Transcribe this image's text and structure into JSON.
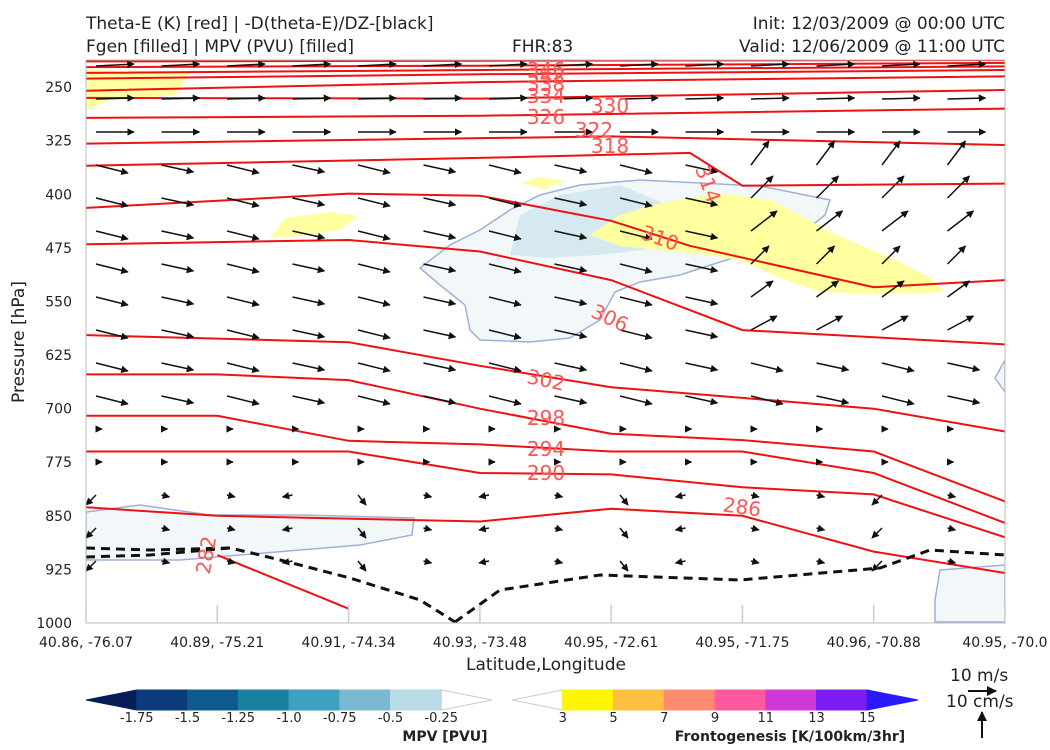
{
  "header": {
    "title_line1": "Theta-E (K) [red] | -D(theta-E)/DZ-[black]",
    "title_line2": "Fgen [filled] | MPV (PVU) [filled]",
    "fhr": "FHR:83",
    "init": "Init: 12/03/2009 @ 00:00 UTC",
    "valid": "Valid: 12/06/2009 @ 11:00 UTC"
  },
  "chart_data": {
    "type": "cross-section",
    "xlabel": "Latitude,Longitude",
    "ylabel": "Pressure [hPa]",
    "x_ticks": [
      "40.86, -76.07",
      "40.89, -75.21",
      "40.91, -74.34",
      "40.93, -73.48",
      "40.95, -72.61",
      "40.95, -71.75",
      "40.96, -70.88",
      "40.95, -70.0"
    ],
    "y_ticks": [
      250,
      325,
      400,
      475,
      550,
      625,
      700,
      775,
      850,
      925,
      1000
    ],
    "ylim": [
      1000,
      212
    ],
    "y_inverted": true,
    "theta_e_contours": [
      {
        "level": 346,
        "points": [
          [
            0,
            214
          ],
          [
            3,
            213
          ],
          [
            7,
            212
          ]
        ]
      },
      {
        "level": 342,
        "points": [
          [
            0,
            222
          ],
          [
            3,
            220
          ],
          [
            7,
            216
          ]
        ]
      },
      {
        "level": 338,
        "points": [
          [
            0,
            230
          ],
          [
            3,
            226
          ],
          [
            7,
            221
          ]
        ]
      },
      {
        "level": 334,
        "points": [
          [
            0,
            238
          ],
          [
            3,
            232
          ],
          [
            7,
            226
          ]
        ]
      },
      {
        "level": 330,
        "points": [
          [
            0,
            255
          ],
          [
            3,
            243
          ],
          [
            7,
            235
          ]
        ]
      },
      {
        "level": 326,
        "points": [
          [
            0,
            265
          ],
          [
            3,
            266
          ],
          [
            7,
            254
          ]
        ]
      },
      {
        "level": 322,
        "points": [
          [
            0,
            293
          ],
          [
            3,
            290
          ],
          [
            7,
            280
          ]
        ]
      },
      {
        "level": 318,
        "points": [
          [
            0,
            329
          ],
          [
            4,
            319
          ],
          [
            7,
            331
          ]
        ]
      },
      {
        "level": 314,
        "points": [
          [
            0,
            360
          ],
          [
            3,
            349
          ],
          [
            4.6,
            342
          ],
          [
            5,
            388
          ],
          [
            7,
            385
          ],
          [
            7,
            385
          ]
        ]
      },
      {
        "level": 310,
        "points": [
          [
            0,
            419
          ],
          [
            2,
            399
          ],
          [
            3,
            402
          ],
          [
            4,
            437
          ],
          [
            4.6,
            472
          ],
          [
            6,
            530
          ],
          [
            7,
            520
          ]
        ]
      },
      {
        "level": 306,
        "points": [
          [
            0,
            470
          ],
          [
            2,
            464
          ],
          [
            3,
            480
          ],
          [
            4,
            520
          ],
          [
            5,
            590
          ],
          [
            7,
            610
          ]
        ]
      },
      {
        "level": 302,
        "points": [
          [
            0,
            597
          ],
          [
            2,
            607
          ],
          [
            3,
            640
          ],
          [
            4,
            670
          ],
          [
            5,
            685
          ],
          [
            6,
            700
          ],
          [
            7,
            732
          ]
        ]
      },
      {
        "level": 298,
        "points": [
          [
            0,
            652
          ],
          [
            1,
            652
          ],
          [
            2,
            660
          ],
          [
            3,
            700
          ],
          [
            4,
            735
          ],
          [
            5,
            744
          ],
          [
            6,
            760
          ],
          [
            7,
            830
          ]
        ]
      },
      {
        "level": 294,
        "points": [
          [
            0,
            710
          ],
          [
            1,
            710
          ],
          [
            2,
            745
          ],
          [
            3,
            750
          ],
          [
            4,
            760
          ],
          [
            5,
            760
          ],
          [
            6,
            790
          ],
          [
            7,
            860
          ]
        ]
      },
      {
        "level": 290,
        "points": [
          [
            0,
            760
          ],
          [
            2,
            760
          ],
          [
            3,
            790
          ],
          [
            4,
            792
          ],
          [
            5,
            810
          ],
          [
            6,
            820
          ],
          [
            7,
            880
          ]
        ]
      },
      {
        "level": 286,
        "points": [
          [
            0,
            838
          ],
          [
            1,
            850
          ],
          [
            3,
            858
          ],
          [
            4,
            840
          ],
          [
            5,
            850
          ],
          [
            6,
            900
          ],
          [
            7,
            930
          ]
        ]
      },
      {
        "level": 282,
        "points": [
          [
            1,
            905
          ],
          [
            2,
            980
          ]
        ]
      }
    ],
    "stability_zero_contour": {
      "level": 0,
      "points": [
        [
          0,
          885
        ],
        [
          1,
          893
        ],
        [
          2,
          920
        ],
        [
          3,
          975
        ],
        [
          4,
          950
        ],
        [
          5,
          955
        ],
        [
          6,
          935
        ],
        [
          7,
          935
        ]
      ]
    },
    "mpv_filled": [
      {
        "value": -0.25,
        "color": "#f2f8fa"
      },
      {
        "value": -0.5,
        "color": "#d6e9f0"
      }
    ],
    "fgen_filled": [
      {
        "value": 3,
        "color": "#ffffa0"
      }
    ],
    "wind_reference": {
      "speed": "10 m/s",
      "vertical": "10 cm/s"
    },
    "colorbars": [
      {
        "label": "MPV [PVU]",
        "ticks": [
          "-1.75",
          "-1.5",
          "-1.25",
          "-1.0",
          "-0.75",
          "-0.5",
          "-0.25"
        ],
        "colors": [
          "#081d58",
          "#0b3b7a",
          "#0f5a8c",
          "#17809f",
          "#3fa1c0",
          "#7ab9d1",
          "#b9dbe6",
          "#ffffff"
        ]
      },
      {
        "label": "Frontogenesis [K/100km/3hr]",
        "ticks": [
          "3",
          "5",
          "7",
          "9",
          "11",
          "13",
          "15"
        ],
        "colors": [
          "#ffffff",
          "#fff500",
          "#ffbf40",
          "#ff8a70",
          "#ff5aa0",
          "#d038d8",
          "#7b1cf0",
          "#2a1aff"
        ]
      }
    ]
  }
}
